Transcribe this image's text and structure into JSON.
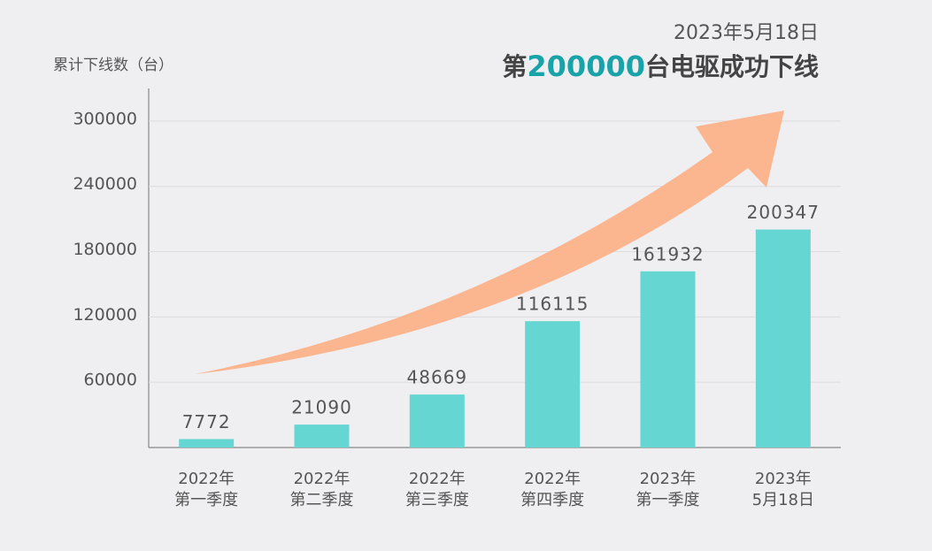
{
  "chart_data": {
    "type": "bar",
    "title": [
      "第",
      "200000",
      "台电驱成功下线"
    ],
    "subtitle": "2023年5月18日",
    "y_label": "累计下线数（台）",
    "categories": [
      [
        "2022年",
        "第一季度"
      ],
      [
        "2022年",
        "第二季度"
      ],
      [
        "2022年",
        "第三季度"
      ],
      [
        "2022年",
        "第四季度"
      ],
      [
        "2023年",
        "第一季度"
      ],
      [
        "2023年",
        "5月18日"
      ]
    ],
    "values": [
      7772,
      21090,
      48669,
      116115,
      161932,
      200347
    ],
    "color": "#66d6d2",
    "highlight_color": "#17a3a8",
    "ylim": [
      0,
      330000
    ],
    "yticks": [
      60000,
      120000,
      180000,
      240000,
      300000
    ],
    "grid": true
  }
}
